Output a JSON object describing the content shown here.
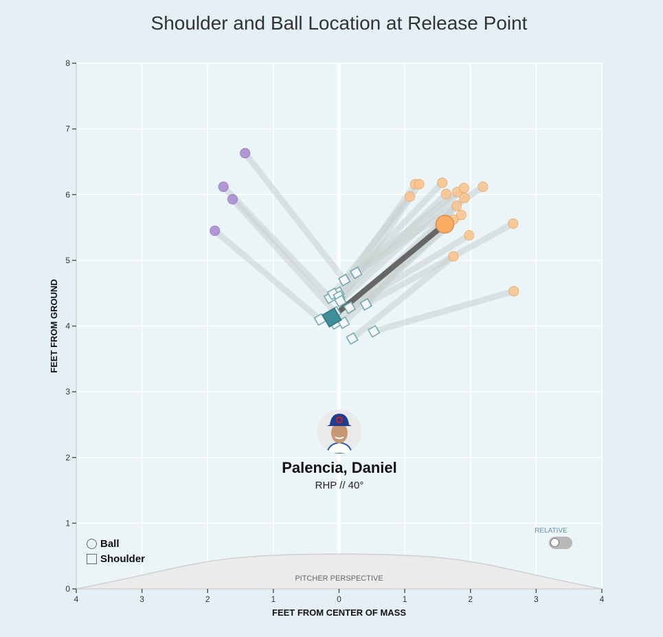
{
  "chart_data": {
    "type": "scatter",
    "title": "Shoulder and Ball Location at Release Point",
    "xlabel": "FEET FROM CENTER OF MASS",
    "ylabel": "FEET FROM GROUND",
    "xlim": [
      -4,
      4
    ],
    "ylim": [
      0,
      8
    ],
    "x_ticks": [
      -4,
      -3,
      -2,
      -1,
      0,
      1,
      2,
      3,
      4
    ],
    "x_tick_labels": [
      "4",
      "3",
      "2",
      "1",
      "0",
      "1",
      "2",
      "3",
      "4"
    ],
    "y_ticks": [
      0,
      1,
      2,
      3,
      4,
      5,
      6,
      7,
      8
    ],
    "y_tick_labels": [
      "0",
      "1",
      "2",
      "3",
      "4",
      "5",
      "6",
      "7",
      "8"
    ],
    "grid": true,
    "colors": {
      "ball_offspeed": "#a98ad0",
      "ball_fastball": "#fcc48d",
      "ball_average": "#fdac64",
      "shoulder_fill": "#f4f8fa",
      "shoulder_stroke": "#6fa7b0",
      "shoulder_average": "#3e8f9a",
      "connector": "#c9cfd0",
      "average_connector": "#666666"
    },
    "pairs": [
      {
        "ball": [
          -1.43,
          6.63
        ],
        "shoulder": [
          0.08,
          4.7
        ],
        "type": "offspeed"
      },
      {
        "ball": [
          -1.76,
          6.12
        ],
        "shoulder": [
          -0.14,
          4.43
        ],
        "type": "offspeed"
      },
      {
        "ball": [
          -1.62,
          5.93
        ],
        "shoulder": [
          -0.06,
          4.21
        ],
        "type": "offspeed"
      },
      {
        "ball": [
          -1.89,
          5.45
        ],
        "shoulder": [
          -0.29,
          4.1
        ],
        "type": "offspeed"
      },
      {
        "ball": [
          1.16,
          6.16
        ],
        "shoulder": [
          -0.01,
          4.51
        ],
        "type": "fastball"
      },
      {
        "ball": [
          1.22,
          6.16
        ],
        "shoulder": [
          0.02,
          4.38
        ],
        "type": "fastball"
      },
      {
        "ball": [
          1.57,
          6.18
        ],
        "shoulder": [
          0.26,
          4.81
        ],
        "type": "fastball"
      },
      {
        "ball": [
          1.08,
          5.97
        ],
        "shoulder": [
          -0.09,
          4.49
        ],
        "type": "fastball"
      },
      {
        "ball": [
          1.63,
          6.01
        ],
        "shoulder": [
          0.0,
          4.45
        ],
        "type": "fastball"
      },
      {
        "ball": [
          1.8,
          6.04
        ],
        "shoulder": [
          0.08,
          4.7
        ],
        "type": "fastball"
      },
      {
        "ball": [
          1.9,
          6.1
        ],
        "shoulder": [
          0.02,
          4.38
        ],
        "type": "fastball"
      },
      {
        "ball": [
          1.91,
          5.95
        ],
        "shoulder": [
          0.16,
          4.28
        ],
        "type": "fastball"
      },
      {
        "ball": [
          2.19,
          6.12
        ],
        "shoulder": [
          0.26,
          4.81
        ],
        "type": "fastball"
      },
      {
        "ball": [
          1.79,
          5.83
        ],
        "shoulder": [
          0.41,
          4.33
        ],
        "type": "fastball"
      },
      {
        "ball": [
          1.86,
          5.69
        ],
        "shoulder": [
          -0.06,
          4.04
        ],
        "type": "fastball"
      },
      {
        "ball": [
          1.74,
          5.62
        ],
        "shoulder": [
          0.07,
          4.05
        ],
        "type": "fastball"
      },
      {
        "ball": [
          1.98,
          5.38
        ],
        "shoulder": [
          0.16,
          4.28
        ],
        "type": "fastball"
      },
      {
        "ball": [
          1.74,
          5.06
        ],
        "shoulder": [
          0.2,
          3.81
        ],
        "type": "fastball"
      },
      {
        "ball": [
          2.65,
          5.56
        ],
        "shoulder": [
          0.41,
          4.33
        ],
        "type": "fastball"
      },
      {
        "ball": [
          2.66,
          4.53
        ],
        "shoulder": [
          0.53,
          3.92
        ],
        "type": "fastball"
      }
    ],
    "average": {
      "ball": [
        1.61,
        5.55
      ],
      "shoulder": [
        -0.11,
        4.13
      ]
    },
    "legend": {
      "ball": "Ball",
      "shoulder": "Shoulder",
      "placement": "bottom-left"
    },
    "annotations": {
      "mound": "PITCHER PERSPECTIVE"
    }
  },
  "player": {
    "name": "Palencia, Daniel",
    "subtitle": "RHP // 40°"
  },
  "controls": {
    "relative_label": "RELATIVE",
    "relative_on": false
  }
}
